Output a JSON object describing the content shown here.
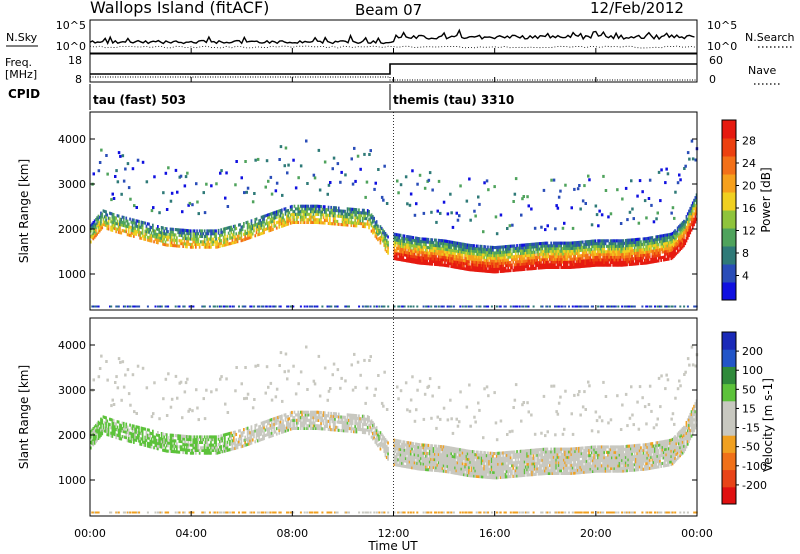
{
  "header": {
    "title": "Wallops Island (fitACF)",
    "beam": "Beam 07",
    "date": "12/Feb/2012"
  },
  "noise_panel": {
    "left_label": "N.Sky",
    "right_label": "N.Search",
    "left_ticks": [
      "10^5",
      "10^0"
    ],
    "right_ticks": [
      "10^5",
      "10^0"
    ]
  },
  "freq_panel": {
    "left_label_line1": "Freq.",
    "left_label_line2": "[MHz]",
    "left_ticks": [
      "18",
      "8"
    ],
    "right_label": "Nave",
    "right_ticks": [
      "60",
      "0"
    ]
  },
  "cpid_panel": {
    "label": "CPID",
    "modes": [
      {
        "text": "tau (fast) 503",
        "start_hour": 0
      },
      {
        "text": "themis (tau) 3310",
        "start_hour": 12
      }
    ]
  },
  "colors": {
    "power_scale": [
      "#1010e0",
      "#2a4db8",
      "#2f7a78",
      "#4fa35c",
      "#8fc43c",
      "#f0d020",
      "#f6a01c",
      "#f37018",
      "#ec4010",
      "#e61a10"
    ],
    "velocity_scale": [
      "#1a2ab8",
      "#2255c8",
      "#2f8a3a",
      "#5cc23a",
      "#c8c8c0",
      "#c8c8c0",
      "#f0a020",
      "#f07018",
      "#e84418",
      "#e01010"
    ]
  },
  "chart_data": [
    {
      "type": "heatmap",
      "name": "power",
      "ylabel": "Slant Range [km]",
      "yticks": [
        "1000",
        "2000",
        "3000",
        "4000"
      ],
      "ylim": [
        200,
        4600
      ],
      "colorbar_label": "Power [dB]",
      "colorbar_ticks": [
        "4",
        "8",
        "12",
        "16",
        "20",
        "24",
        "28"
      ],
      "colorbar_range": [
        0,
        32
      ],
      "grid": false,
      "features": [
        {
          "desc": "echo band",
          "hours": [
            0,
            0.5,
            1,
            2,
            3,
            4,
            5,
            6,
            7,
            8,
            9,
            10,
            11,
            11.8
          ],
          "range_km": [
            1750,
            2100,
            2000,
            1850,
            1700,
            1650,
            1650,
            1800,
            2000,
            2200,
            2200,
            2150,
            2100,
            1500
          ]
        },
        {
          "desc": "echo band",
          "hours": [
            12,
            13,
            14,
            15,
            16,
            17,
            18,
            19,
            20,
            21,
            22,
            23,
            23.5,
            24
          ],
          "range_km": [
            1400,
            1300,
            1250,
            1150,
            1100,
            1150,
            1200,
            1200,
            1250,
            1250,
            1300,
            1400,
            1700,
            2300
          ]
        }
      ]
    },
    {
      "type": "heatmap",
      "name": "velocity",
      "ylabel": "Slant Range [km]",
      "yticks": [
        "1000",
        "2000",
        "3000",
        "4000"
      ],
      "ylim": [
        200,
        4600
      ],
      "colorbar_label": "Velocity [m s-1]",
      "colorbar_ticks": [
        "200",
        "100",
        "50",
        "15",
        "-15",
        "-50",
        "-100",
        "-200"
      ],
      "grid": false
    }
  ],
  "time_axis": {
    "xlabel": "Time UT",
    "ticks": [
      "00:00",
      "04:00",
      "08:00",
      "12:00",
      "16:00",
      "20:00",
      "00:00"
    ],
    "xlim_hours": [
      0,
      24
    ]
  }
}
